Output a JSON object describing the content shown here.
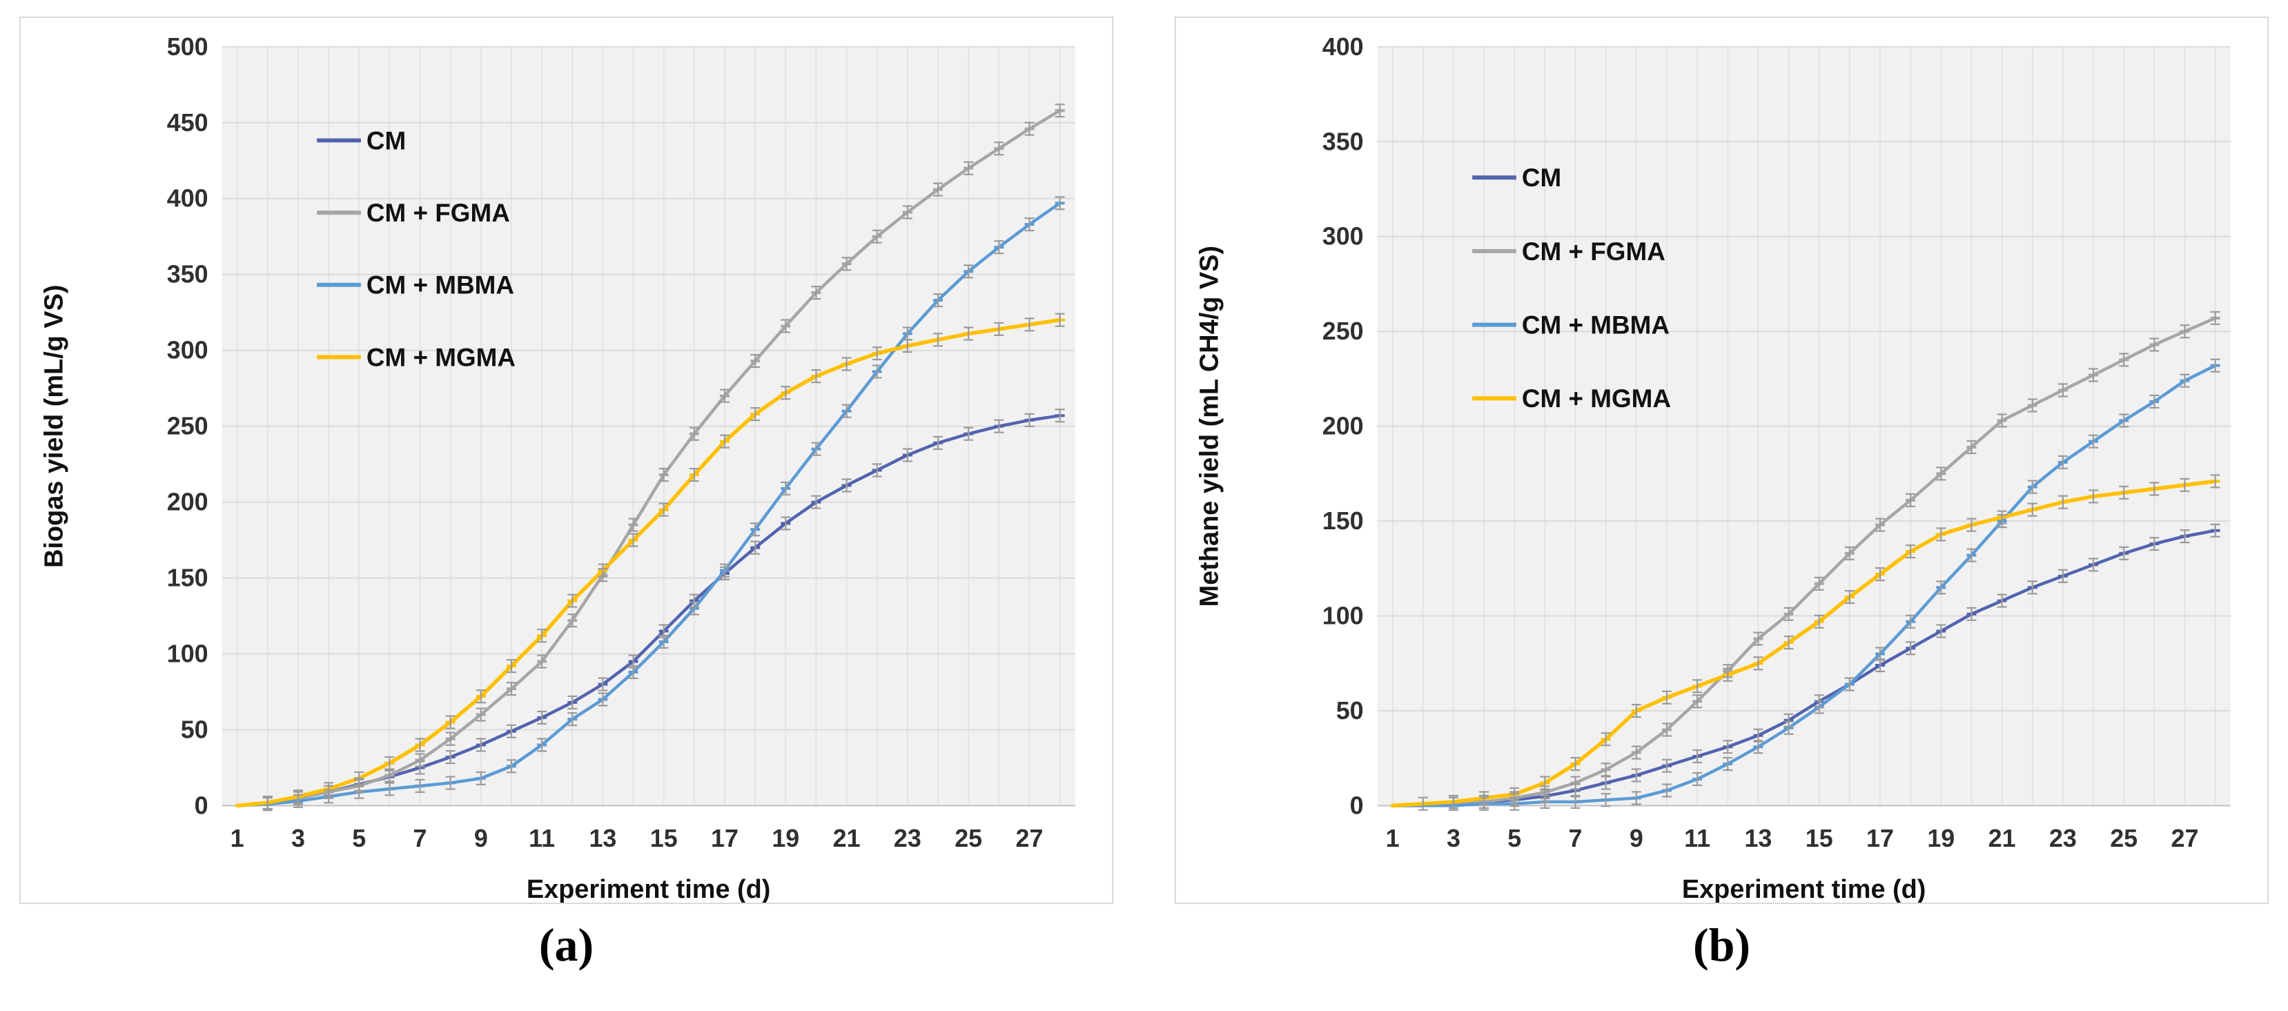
{
  "figure": {
    "panels": [
      {
        "caption": "(a)"
      },
      {
        "caption": "(b)"
      }
    ]
  },
  "chart_data": [
    {
      "type": "line",
      "title": "",
      "xlabel": "Experiment time (d)",
      "ylabel": "Biogas yield (mL/g VS)",
      "x": [
        1,
        2,
        3,
        4,
        5,
        6,
        7,
        8,
        9,
        10,
        11,
        12,
        13,
        14,
        15,
        16,
        17,
        18,
        19,
        20,
        21,
        22,
        23,
        24,
        25,
        26,
        27,
        28
      ],
      "xticks": [
        1,
        3,
        5,
        7,
        9,
        11,
        13,
        15,
        17,
        19,
        21,
        23,
        25,
        27
      ],
      "ylim": [
        0,
        500
      ],
      "ytick_step": 50,
      "grid": true,
      "error_bars": true,
      "legend_position": "upper-left",
      "plot_bg": "#f1f1f1",
      "series": [
        {
          "name": "CM",
          "color": "#5263af",
          "values": [
            0,
            2,
            5,
            9,
            14,
            19,
            25,
            32,
            40,
            49,
            58,
            68,
            80,
            95,
            115,
            135,
            153,
            170,
            186,
            200,
            211,
            221,
            231,
            239,
            245,
            250,
            254,
            257
          ]
        },
        {
          "name": "CM + FGMA",
          "color": "#a6a6a6",
          "values": [
            0,
            2,
            5,
            9,
            13,
            20,
            30,
            44,
            60,
            77,
            95,
            122,
            152,
            185,
            218,
            245,
            270,
            293,
            316,
            338,
            357,
            375,
            391,
            406,
            420,
            433,
            446,
            458
          ]
        },
        {
          "name": "CM + MBMA",
          "color": "#5b9bd5",
          "values": [
            0,
            1,
            3,
            6,
            9,
            11,
            13,
            15,
            18,
            26,
            40,
            57,
            70,
            88,
            108,
            130,
            155,
            182,
            209,
            235,
            260,
            286,
            311,
            333,
            352,
            368,
            383,
            397
          ]
        },
        {
          "name": "CM + MGMA",
          "color": "#ffc000",
          "values": [
            0,
            2,
            6,
            11,
            18,
            28,
            40,
            55,
            72,
            92,
            112,
            135,
            155,
            175,
            195,
            218,
            240,
            258,
            272,
            283,
            291,
            298,
            303,
            307,
            311,
            314,
            317,
            320
          ]
        }
      ]
    },
    {
      "type": "line",
      "title": "",
      "xlabel": "Experiment time (d)",
      "ylabel": "Methane yield (mL CH4/g VS)",
      "x": [
        1,
        2,
        3,
        4,
        5,
        6,
        7,
        8,
        9,
        10,
        11,
        12,
        13,
        14,
        15,
        16,
        17,
        18,
        19,
        20,
        21,
        22,
        23,
        24,
        25,
        26,
        27,
        28
      ],
      "xticks": [
        1,
        3,
        5,
        7,
        9,
        11,
        13,
        15,
        17,
        19,
        21,
        23,
        25,
        27
      ],
      "ylim": [
        0,
        400
      ],
      "ytick_step": 50,
      "grid": true,
      "error_bars": true,
      "legend_position": "upper-left",
      "plot_bg": "#f1f1f1",
      "series": [
        {
          "name": "CM",
          "color": "#5263af",
          "values": [
            0,
            0,
            1,
            2,
            3,
            5,
            8,
            12,
            16,
            21,
            26,
            31,
            37,
            45,
            55,
            64,
            74,
            83,
            92,
            101,
            108,
            115,
            121,
            127,
            133,
            138,
            142,
            145
          ]
        },
        {
          "name": "CM + FGMA",
          "color": "#a6a6a6",
          "values": [
            0,
            0,
            1,
            2,
            4,
            7,
            12,
            19,
            28,
            40,
            55,
            71,
            88,
            101,
            117,
            133,
            148,
            161,
            175,
            189,
            203,
            211,
            219,
            227,
            235,
            243,
            250,
            257
          ]
        },
        {
          "name": "CM + MBMA",
          "color": "#5b9bd5",
          "values": [
            0,
            0,
            0,
            1,
            1,
            2,
            2,
            3,
            4,
            8,
            14,
            22,
            31,
            41,
            52,
            64,
            80,
            97,
            115,
            132,
            150,
            168,
            181,
            192,
            203,
            213,
            224,
            232
          ]
        },
        {
          "name": "CM + MGMA",
          "color": "#ffc000",
          "values": [
            0,
            1,
            2,
            4,
            6,
            12,
            22,
            35,
            50,
            57,
            63,
            69,
            75,
            86,
            97,
            110,
            122,
            134,
            143,
            148,
            152,
            156,
            160,
            163,
            165,
            167,
            169,
            171
          ]
        }
      ]
    }
  ]
}
